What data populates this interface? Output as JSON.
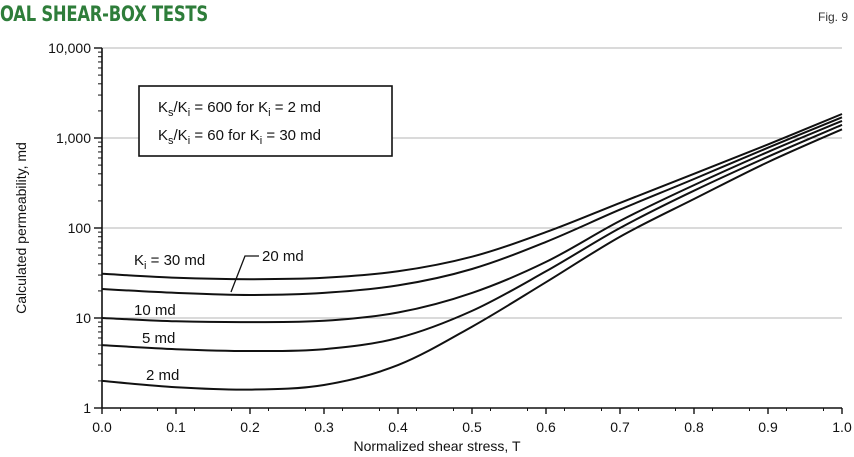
{
  "header": {
    "title": "OAL SHEAR-BOX TESTS",
    "figure_label": "Fig. 9"
  },
  "colors": {
    "title": "#2e7d3a",
    "curve": "#111111",
    "grid": "#b5b5b5"
  },
  "chart_data": {
    "type": "line",
    "title": "",
    "xlabel": "Normalized shear stress, T",
    "ylabel": "Calculated permeability, md",
    "xlim": [
      0.0,
      1.0
    ],
    "ylim": [
      1,
      10000
    ],
    "y_scale": "log",
    "grid": "horizontal major",
    "x_ticks": [
      "0.0",
      "0.1",
      "0.2",
      "0.3",
      "0.4",
      "0.5",
      "0.6",
      "0.7",
      "0.8",
      "0.9",
      "1.0"
    ],
    "y_ticks": [
      "1",
      "10",
      "100",
      "1,000",
      "10,000"
    ],
    "legend_box": {
      "line1": {
        "a": "K",
        "a_sub": "s",
        "b": "/K",
        "b_sub": "i",
        "c": " = 600 for K",
        "c_sub": "i",
        "d": " = 2 md"
      },
      "line2": {
        "a": "K",
        "a_sub": "s",
        "b": "/K",
        "b_sub": "i",
        "c": " = 60 for K",
        "c_sub": "i",
        "d": " = 30 md"
      }
    },
    "curve_labels": {
      "k30": {
        "main": "K",
        "sub": "i",
        "rest": " = 30 md"
      },
      "k20": "20 md",
      "k10": "10 md",
      "k5": "5 md",
      "k2": "2 md"
    },
    "series": [
      {
        "name": "30 md",
        "x": [
          0.0,
          0.1,
          0.2,
          0.3,
          0.4,
          0.5,
          0.6,
          0.7,
          0.8,
          0.9,
          1.0
        ],
        "y": [
          31,
          28,
          27,
          28,
          33,
          48,
          90,
          190,
          400,
          850,
          1850
        ]
      },
      {
        "name": "20 md",
        "x": [
          0.0,
          0.1,
          0.2,
          0.3,
          0.4,
          0.5,
          0.6,
          0.7,
          0.8,
          0.9,
          1.0
        ],
        "y": [
          21,
          19,
          18,
          19,
          23,
          35,
          70,
          160,
          350,
          780,
          1700
        ]
      },
      {
        "name": "10 md",
        "x": [
          0.0,
          0.1,
          0.2,
          0.3,
          0.4,
          0.5,
          0.6,
          0.7,
          0.8,
          0.9,
          1.0
        ],
        "y": [
          10,
          9.2,
          9,
          9.3,
          11.5,
          19,
          42,
          120,
          300,
          700,
          1550
        ]
      },
      {
        "name": "5 md",
        "x": [
          0.0,
          0.1,
          0.2,
          0.3,
          0.4,
          0.5,
          0.6,
          0.7,
          0.8,
          0.9,
          1.0
        ],
        "y": [
          5,
          4.5,
          4.3,
          4.5,
          6,
          12,
          33,
          100,
          260,
          620,
          1400
        ]
      },
      {
        "name": "2 md",
        "x": [
          0.0,
          0.1,
          0.2,
          0.3,
          0.4,
          0.5,
          0.6,
          0.7,
          0.8,
          0.9,
          1.0
        ],
        "y": [
          2,
          1.7,
          1.6,
          1.8,
          3,
          8,
          25,
          80,
          210,
          540,
          1250
        ]
      }
    ]
  }
}
